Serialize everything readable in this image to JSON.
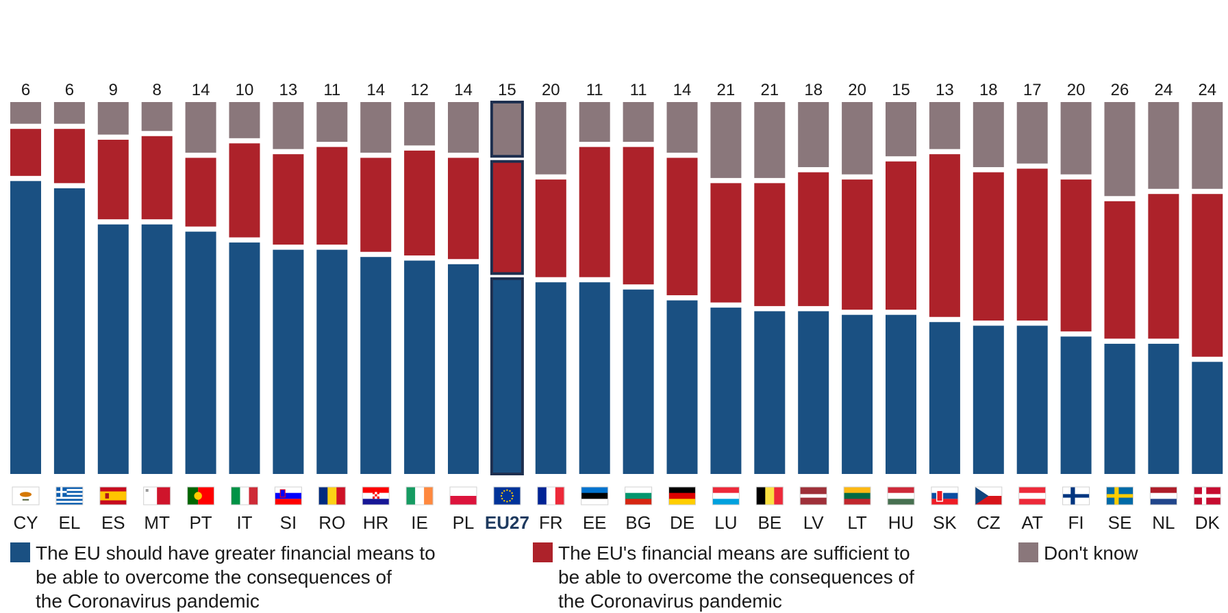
{
  "chart_data": {
    "type": "bar",
    "stacked": true,
    "highlight_category": "EU27",
    "categories": [
      "CY",
      "EL",
      "ES",
      "MT",
      "PT",
      "IT",
      "SI",
      "RO",
      "HR",
      "IE",
      "PL",
      "EU27",
      "FR",
      "EE",
      "BG",
      "DE",
      "LU",
      "BE",
      "LV",
      "LT",
      "HU",
      "SK",
      "CZ",
      "AT",
      "FI",
      "SE",
      "NL",
      "DK"
    ],
    "series": [
      {
        "name": "The EU should have greater financial means to be able to overcome the consequences of the Coronavirus pandemic",
        "color": "#1a5082",
        "values": [
          81,
          79,
          69,
          69,
          67,
          64,
          62,
          62,
          60,
          59,
          58,
          54,
          53,
          53,
          51,
          48,
          46,
          45,
          45,
          44,
          44,
          42,
          41,
          41,
          38,
          36,
          36,
          31
        ]
      },
      {
        "name": "The EU's financial means are sufficient to be able to overcome the consequences of the Coronavirus pandemic",
        "color": "#ad222a",
        "values": [
          13,
          15,
          22,
          23,
          19,
          26,
          25,
          27,
          26,
          29,
          28,
          31,
          27,
          36,
          38,
          38,
          33,
          34,
          37,
          36,
          41,
          45,
          41,
          42,
          42,
          38,
          40,
          45
        ]
      },
      {
        "name": "Don't know",
        "color": "#8a777b",
        "values": [
          6,
          6,
          9,
          8,
          14,
          10,
          13,
          11,
          14,
          12,
          14,
          15,
          20,
          11,
          11,
          14,
          21,
          21,
          18,
          20,
          15,
          13,
          18,
          17,
          20,
          26,
          24,
          24
        ]
      }
    ]
  },
  "legend": [
    {
      "lines": [
        "The EU should have greater financial means to",
        "be able to overcome the consequences of",
        "the Coronavirus pandemic"
      ],
      "color": "#1a5082"
    },
    {
      "lines": [
        "The EU's financial means are sufficient to",
        "be able to overcome the consequences of",
        "the Coronavirus pandemic"
      ],
      "color": "#ad222a"
    },
    {
      "lines": [
        "Don't know"
      ],
      "color": "#8a777b"
    }
  ],
  "flags": {
    "CY": {
      "type": "cy",
      "colors": [
        "#ffffff",
        "#d57800",
        "#4e5b31"
      ]
    },
    "EL": {
      "type": "gr",
      "colors": [
        "#0d5eaf",
        "#ffffff"
      ]
    },
    "ES": {
      "type": "es",
      "colors": [
        "#c60b1e",
        "#ffc400",
        "#c60b1e"
      ]
    },
    "MT": {
      "type": "mt",
      "colors": [
        "#ffffff",
        "#cf142b"
      ]
    },
    "PT": {
      "type": "pt",
      "colors": [
        "#006600",
        "#ff0000",
        "#ffcc00"
      ]
    },
    "IT": {
      "type": "v3",
      "colors": [
        "#009246",
        "#ffffff",
        "#ce2b37"
      ]
    },
    "SI": {
      "type": "si",
      "colors": [
        "#ffffff",
        "#0000ff",
        "#ff0000"
      ]
    },
    "RO": {
      "type": "v3",
      "colors": [
        "#002b7f",
        "#fcd116",
        "#ce1126"
      ]
    },
    "HR": {
      "type": "hr",
      "colors": [
        "#ff0000",
        "#ffffff",
        "#171796"
      ]
    },
    "IE": {
      "type": "v3",
      "colors": [
        "#169b62",
        "#ffffff",
        "#ff883e"
      ]
    },
    "PL": {
      "type": "h2",
      "colors": [
        "#ffffff",
        "#dc143c"
      ]
    },
    "EU27": {
      "type": "eu",
      "colors": [
        "#003399",
        "#ffcc00"
      ]
    },
    "FR": {
      "type": "v3",
      "colors": [
        "#002395",
        "#ffffff",
        "#ed2939"
      ]
    },
    "EE": {
      "type": "h3",
      "colors": [
        "#0072ce",
        "#000000",
        "#ffffff"
      ]
    },
    "BG": {
      "type": "h3",
      "colors": [
        "#ffffff",
        "#00966e",
        "#d62612"
      ]
    },
    "DE": {
      "type": "h3",
      "colors": [
        "#000000",
        "#dd0000",
        "#ffce00"
      ]
    },
    "LU": {
      "type": "h3",
      "colors": [
        "#ed2939",
        "#ffffff",
        "#00a1de"
      ]
    },
    "BE": {
      "type": "v3",
      "colors": [
        "#000000",
        "#fae042",
        "#ed2939"
      ]
    },
    "LV": {
      "type": "lv",
      "colors": [
        "#9e3039",
        "#ffffff"
      ]
    },
    "LT": {
      "type": "h3",
      "colors": [
        "#fdb913",
        "#006a44",
        "#c1272d"
      ]
    },
    "HU": {
      "type": "h3",
      "colors": [
        "#ce2939",
        "#ffffff",
        "#477050"
      ]
    },
    "SK": {
      "type": "sk",
      "colors": [
        "#ffffff",
        "#0b4ea2",
        "#ee1c25"
      ]
    },
    "CZ": {
      "type": "cz",
      "colors": [
        "#ffffff",
        "#d7141a",
        "#11457e"
      ]
    },
    "AT": {
      "type": "h3",
      "colors": [
        "#ed2939",
        "#ffffff",
        "#ed2939"
      ]
    },
    "FI": {
      "type": "nordic",
      "colors": [
        "#ffffff",
        "#003580"
      ]
    },
    "SE": {
      "type": "nordic",
      "colors": [
        "#006aa7",
        "#fecc00"
      ]
    },
    "NL": {
      "type": "h3",
      "colors": [
        "#ae1c28",
        "#ffffff",
        "#21468b"
      ]
    },
    "DK": {
      "type": "nordic",
      "colors": [
        "#c60c30",
        "#ffffff"
      ]
    }
  }
}
